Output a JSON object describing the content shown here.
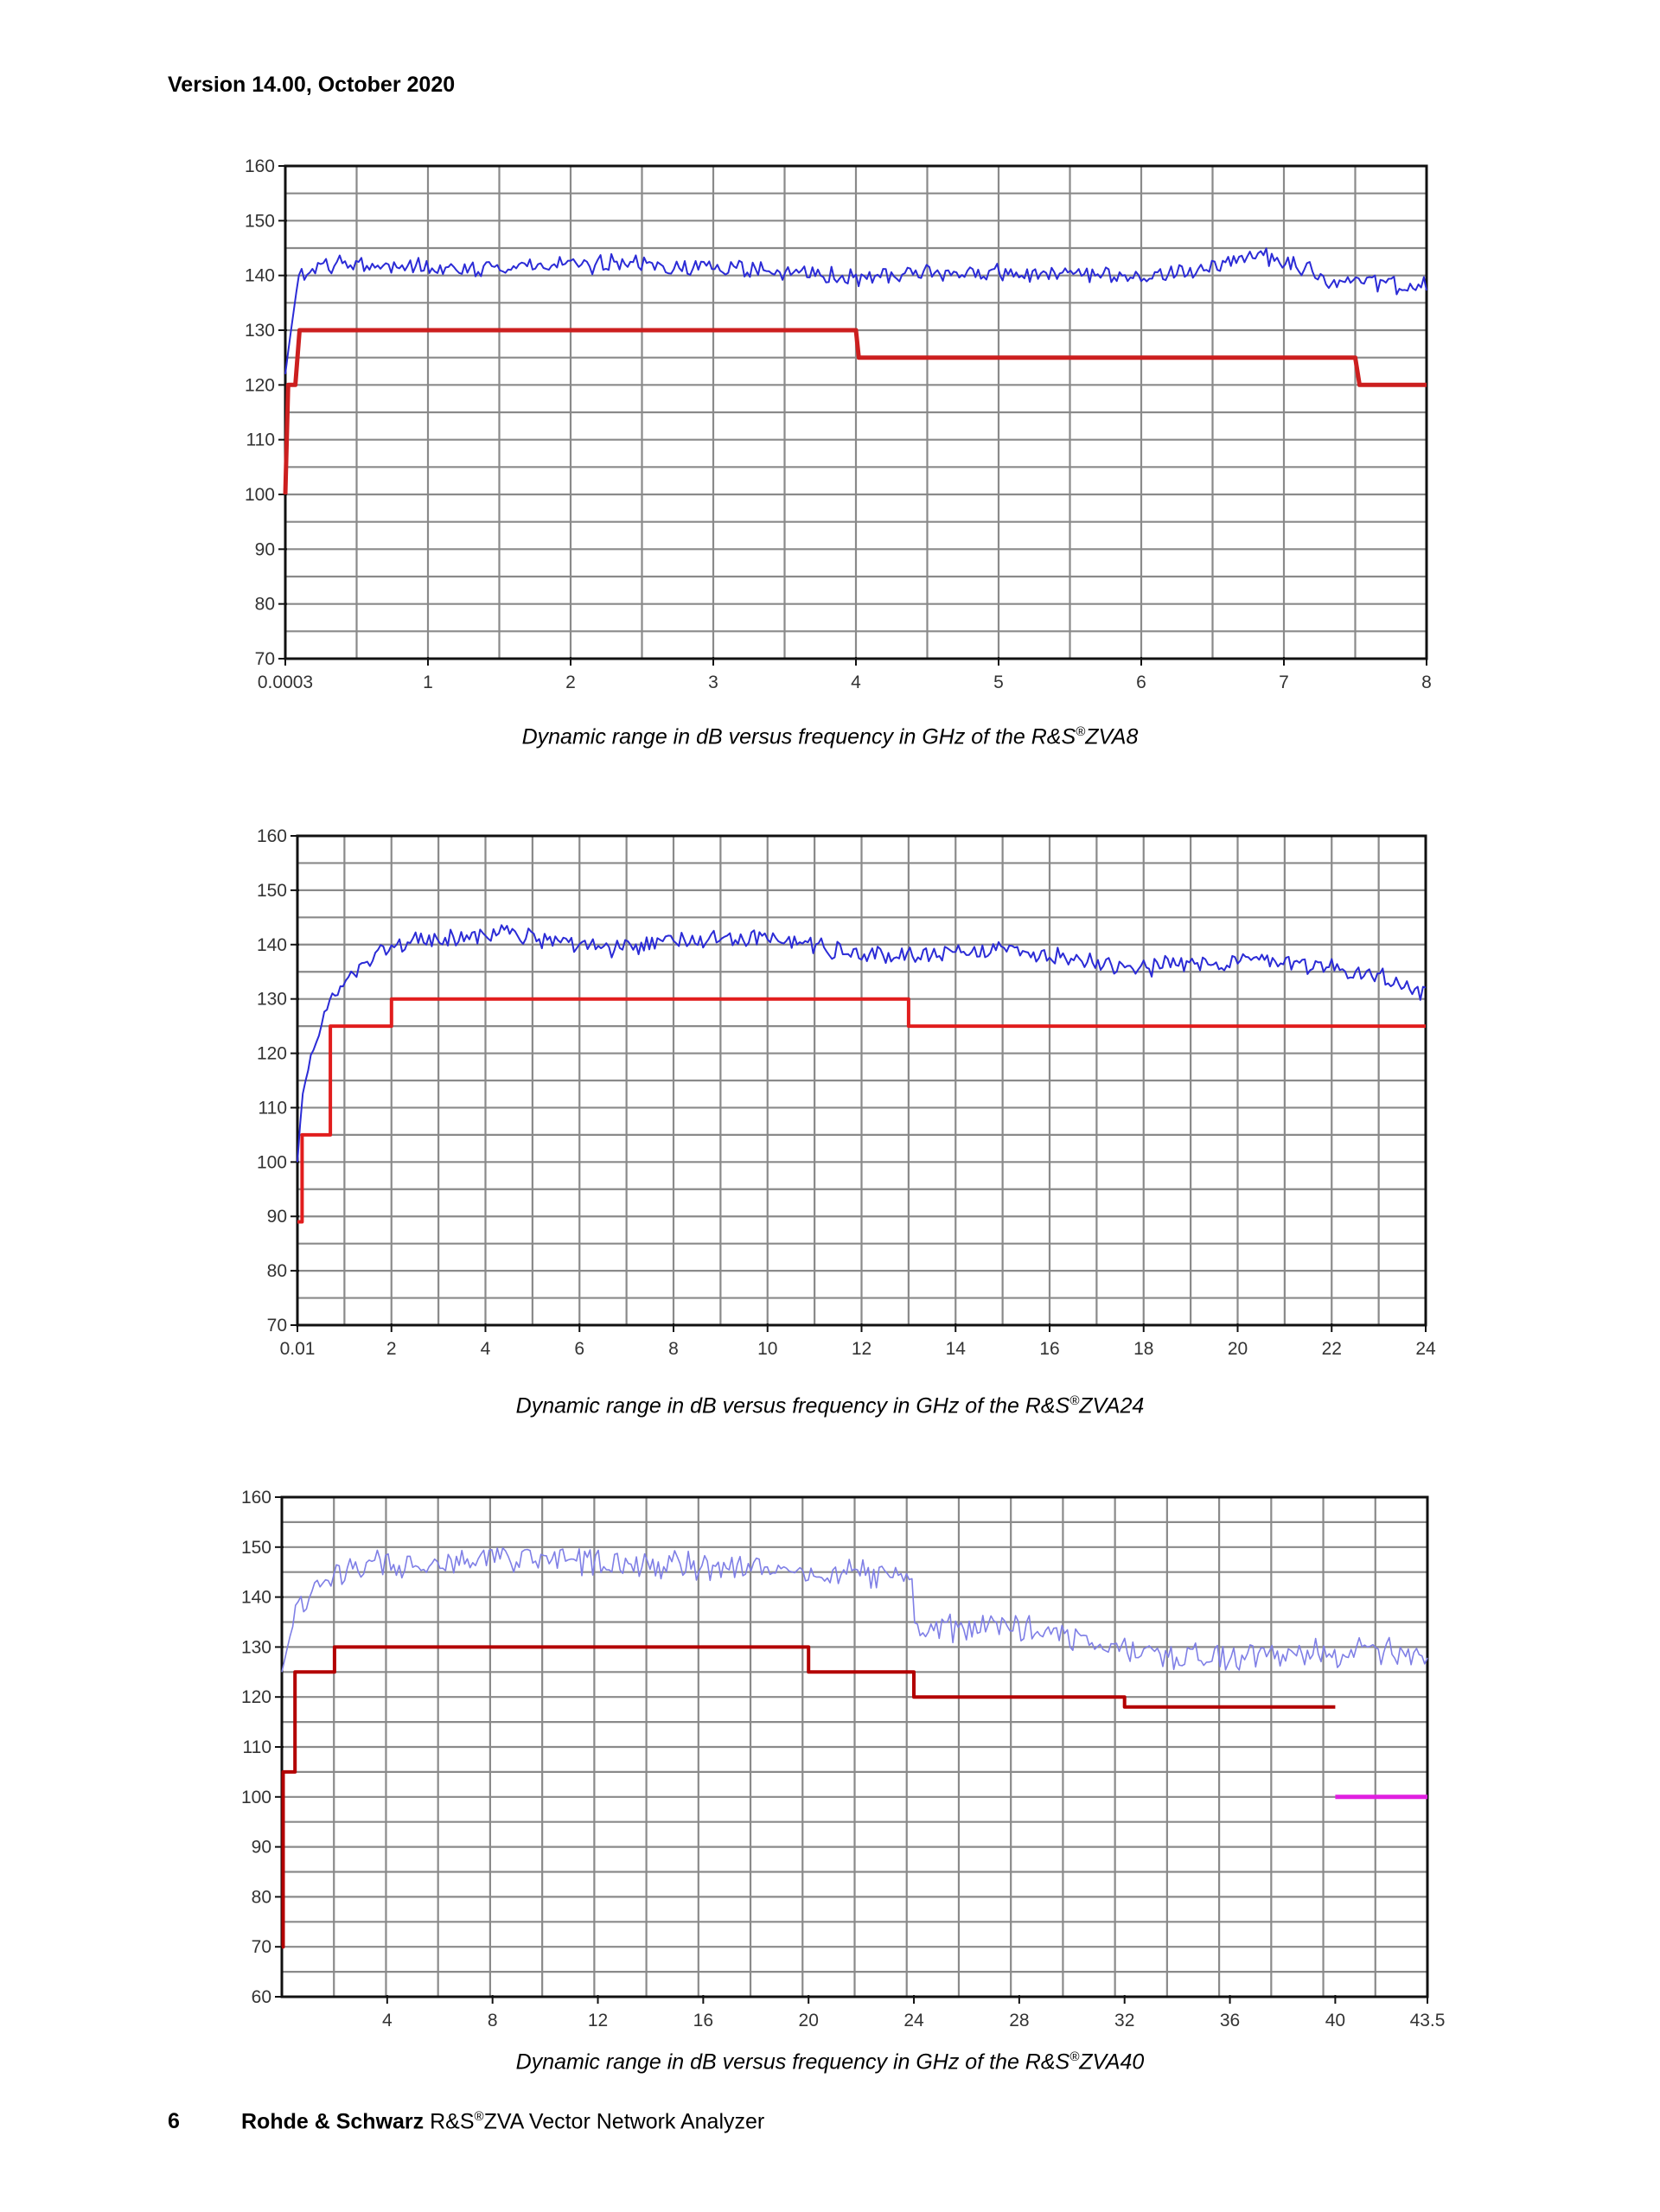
{
  "page": {
    "header": "Version 14.00, October 2020",
    "footer": {
      "page_number": "6",
      "company": "Rohde & Schwarz",
      "brand": "R&S",
      "reg": "®",
      "product": "ZVA Vector Network Analyzer"
    }
  },
  "chart_data": [
    {
      "type": "line",
      "caption": {
        "prefix": "Dynamic range in dB versus frequency in GHz of the R&S",
        "reg": "®",
        "model": "ZVA8"
      },
      "xlabel": "",
      "ylabel": "",
      "xlim": [
        0,
        8
      ],
      "ylim": [
        70,
        160
      ],
      "x_ticks": [
        {
          "v": 0,
          "label": "0.0003"
        },
        {
          "v": 1,
          "label": "1"
        },
        {
          "v": 2,
          "label": "2"
        },
        {
          "v": 3,
          "label": "3"
        },
        {
          "v": 4,
          "label": "4"
        },
        {
          "v": 5,
          "label": "5"
        },
        {
          "v": 6,
          "label": "6"
        },
        {
          "v": 7,
          "label": "7"
        },
        {
          "v": 8,
          "label": "8"
        }
      ],
      "y_ticks": [
        70,
        80,
        90,
        100,
        110,
        120,
        130,
        140,
        150,
        160
      ],
      "grid": true,
      "series": [
        {
          "kind": "measured",
          "color": "#2b2bd6",
          "width": 2,
          "points": [
            [
              0,
              122
            ],
            [
              0.05,
              132
            ],
            [
              0.1,
              140
            ],
            [
              0.3,
              142
            ],
            [
              0.6,
              142
            ],
            [
              1,
              141.5
            ],
            [
              1.5,
              141.5
            ],
            [
              2,
              142
            ],
            [
              2.5,
              142
            ],
            [
              3,
              141.5
            ],
            [
              3.5,
              140.5
            ],
            [
              4,
              139.5
            ],
            [
              4.5,
              140.5
            ],
            [
              5,
              140.5
            ],
            [
              5.5,
              140
            ],
            [
              6,
              139.5
            ],
            [
              6.5,
              141.5
            ],
            [
              6.8,
              144
            ],
            [
              7.1,
              142
            ],
            [
              7.3,
              139
            ],
            [
              7.6,
              138.5
            ],
            [
              8,
              138
            ]
          ],
          "noise": 1.3
        },
        {
          "kind": "specified",
          "color": "#cc1f1f",
          "width": 5,
          "points": [
            [
              0,
              100
            ],
            [
              0.02,
              120
            ],
            [
              0.07,
              120
            ],
            [
              0.1,
              130
            ],
            [
              4,
              130
            ],
            [
              4.02,
              125
            ],
            [
              7.5,
              125
            ],
            [
              7.53,
              120
            ],
            [
              8,
              120
            ]
          ]
        }
      ]
    },
    {
      "type": "line",
      "caption": {
        "prefix": "Dynamic range in dB versus frequency in GHz of the R&S",
        "reg": "®",
        "model": "ZVA24"
      },
      "xlabel": "",
      "ylabel": "",
      "xlim": [
        0,
        24
      ],
      "ylim": [
        70,
        160
      ],
      "x_ticks": [
        {
          "v": 0,
          "label": "0.01"
        },
        {
          "v": 2,
          "label": "2"
        },
        {
          "v": 4,
          "label": "4"
        },
        {
          "v": 6,
          "label": "6"
        },
        {
          "v": 8,
          "label": "8"
        },
        {
          "v": 10,
          "label": "10"
        },
        {
          "v": 12,
          "label": "12"
        },
        {
          "v": 14,
          "label": "14"
        },
        {
          "v": 16,
          "label": "16"
        },
        {
          "v": 18,
          "label": "18"
        },
        {
          "v": 20,
          "label": "20"
        },
        {
          "v": 22,
          "label": "22"
        },
        {
          "v": 24,
          "label": "24"
        }
      ],
      "y_ticks": [
        70,
        80,
        90,
        100,
        110,
        120,
        130,
        140,
        150,
        160
      ],
      "grid": true,
      "series": [
        {
          "kind": "measured",
          "color": "#2b2bd6",
          "width": 2,
          "points": [
            [
              0,
              100
            ],
            [
              0.1,
              112
            ],
            [
              0.3,
              120
            ],
            [
              0.6,
              128
            ],
            [
              1,
              133
            ],
            [
              1.5,
              137
            ],
            [
              2,
              140
            ],
            [
              3,
              141
            ],
            [
              4,
              142
            ],
            [
              5,
              141.5
            ],
            [
              6,
              139.5
            ],
            [
              7,
              139
            ],
            [
              8,
              141
            ],
            [
              9,
              141.5
            ],
            [
              10,
              141
            ],
            [
              11,
              140
            ],
            [
              12,
              138
            ],
            [
              13,
              138
            ],
            [
              14,
              139
            ],
            [
              15,
              139
            ],
            [
              16,
              138
            ],
            [
              17,
              137
            ],
            [
              18,
              136
            ],
            [
              19,
              136.5
            ],
            [
              20,
              137
            ],
            [
              21,
              137
            ],
            [
              22,
              136
            ],
            [
              23,
              134
            ],
            [
              24,
              131
            ]
          ],
          "noise": 1.4
        },
        {
          "kind": "specified",
          "color": "#e11d1d",
          "width": 4,
          "points": [
            [
              0,
              89
            ],
            [
              0.1,
              89
            ],
            [
              0.1,
              105
            ],
            [
              0.7,
              105
            ],
            [
              0.7,
              125
            ],
            [
              2,
              125
            ],
            [
              2,
              130
            ],
            [
              13,
              130
            ],
            [
              13,
              125
            ],
            [
              24,
              125
            ]
          ]
        }
      ]
    },
    {
      "type": "line",
      "caption": {
        "prefix": "Dynamic range in dB versus frequency in GHz of the R&S",
        "reg": "®",
        "model": "ZVA40"
      },
      "xlabel": "",
      "ylabel": "",
      "xlim": [
        0,
        43.5
      ],
      "ylim": [
        60,
        160
      ],
      "x_ticks": [
        {
          "v": 4,
          "label": "4"
        },
        {
          "v": 8,
          "label": "8"
        },
        {
          "v": 12,
          "label": "12"
        },
        {
          "v": 16,
          "label": "16"
        },
        {
          "v": 20,
          "label": "20"
        },
        {
          "v": 24,
          "label": "24"
        },
        {
          "v": 28,
          "label": "28"
        },
        {
          "v": 32,
          "label": "32"
        },
        {
          "v": 36,
          "label": "36"
        },
        {
          "v": 40,
          "label": "40"
        },
        {
          "v": 43.5,
          "label": "43.5"
        }
      ],
      "y_ticks": [
        60,
        70,
        80,
        90,
        100,
        110,
        120,
        130,
        140,
        150,
        160
      ],
      "grid": true,
      "series": [
        {
          "kind": "measured",
          "color": "#7f7fe6",
          "width": 1.6,
          "points": [
            [
              0,
              125
            ],
            [
              0.3,
              132
            ],
            [
              0.8,
              140
            ],
            [
              2,
              145
            ],
            [
              4,
              147
            ],
            [
              8,
              147.5
            ],
            [
              12,
              147
            ],
            [
              16,
              146
            ],
            [
              20,
              145
            ],
            [
              23.9,
              144
            ],
            [
              24.1,
              133
            ],
            [
              26,
              134
            ],
            [
              28,
              134
            ],
            [
              30,
              132
            ],
            [
              32,
              130
            ],
            [
              34,
              128
            ],
            [
              36,
              128
            ],
            [
              38,
              128
            ],
            [
              40,
              129
            ],
            [
              42,
              129
            ],
            [
              43.5,
              127
            ]
          ],
          "noise": 2.2
        },
        {
          "kind": "specified",
          "color": "#b30000",
          "width": 4,
          "points": [
            [
              0,
              70
            ],
            [
              0.05,
              70
            ],
            [
              0.05,
              105
            ],
            [
              0.5,
              105
            ],
            [
              0.5,
              125
            ],
            [
              2,
              125
            ],
            [
              2,
              130
            ],
            [
              20,
              130
            ],
            [
              20,
              125
            ],
            [
              24,
              125
            ],
            [
              24,
              120
            ],
            [
              32,
              120
            ],
            [
              32,
              118
            ],
            [
              40,
              118
            ]
          ]
        },
        {
          "kind": "specified-extended",
          "color": "#e020e0",
          "width": 5,
          "points": [
            [
              40,
              100
            ],
            [
              43.5,
              100
            ]
          ]
        }
      ]
    }
  ]
}
